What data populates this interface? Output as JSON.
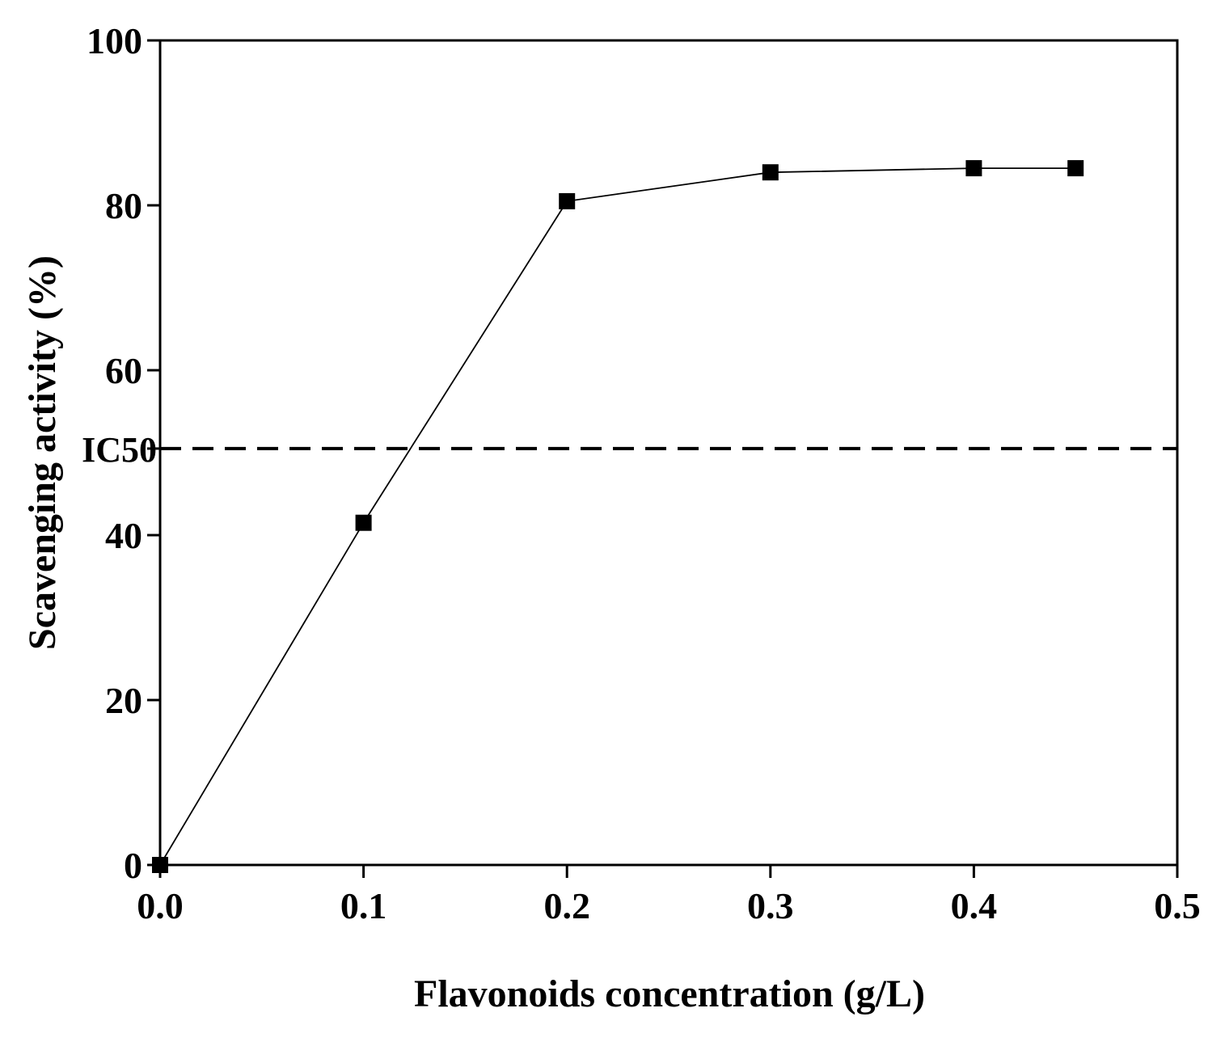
{
  "chart_data": {
    "type": "line",
    "title": "",
    "xlabel": "Flavonoids concentration (g/L)",
    "ylabel": "Scavenging activity (%)",
    "xlim": [
      0,
      0.5
    ],
    "ylim": [
      0,
      100
    ],
    "x_ticks": [
      "0.0",
      "0.1",
      "0.2",
      "0.3",
      "0.4",
      "0.5"
    ],
    "y_ticks": [
      "0",
      "20",
      "40",
      "60",
      "80",
      "100"
    ],
    "grid": false,
    "marker": "square",
    "series": [
      {
        "x": [
          0.0,
          0.1,
          0.2,
          0.3,
          0.4,
          0.45
        ],
        "y": [
          0,
          41.5,
          80.5,
          84,
          84.5,
          84.5
        ],
        "color": "#000000"
      }
    ],
    "reference_lines": [
      {
        "label": "IC50",
        "y": 50.5,
        "style": "dashed",
        "color": "#000000"
      }
    ]
  }
}
